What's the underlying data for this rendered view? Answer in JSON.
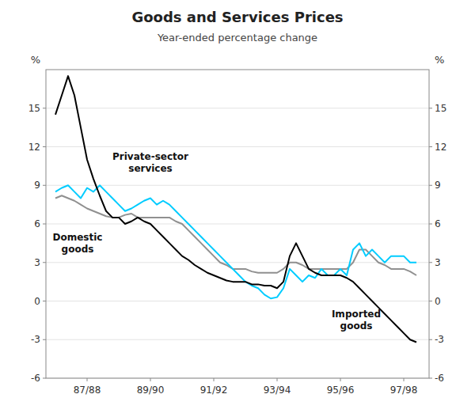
{
  "chart_data": {
    "type": "line",
    "title": "Goods and Services Prices",
    "subtitle": "Year-ended percentage change",
    "ylabel": "%",
    "y2label": "%",
    "x": [
      0.0,
      0.2,
      0.4,
      0.6,
      0.8,
      1.0,
      1.2,
      1.4,
      1.6,
      1.8,
      2.0,
      2.2,
      2.4,
      2.6,
      2.8,
      3.0,
      3.2,
      3.4,
      3.6,
      3.8,
      4.0,
      4.2,
      4.4,
      4.6,
      4.8,
      5.0,
      5.2,
      5.4,
      5.6,
      5.8,
      6.0,
      6.2,
      6.4,
      6.6,
      6.8,
      7.0,
      7.2,
      7.4,
      7.6,
      7.8,
      8.0,
      8.2,
      8.4,
      8.6,
      8.8,
      9.0,
      9.2,
      9.4,
      9.6,
      9.8,
      10.0,
      10.2,
      10.4,
      10.6,
      10.8,
      11.0,
      11.2,
      11.4
    ],
    "xlim": [
      -0.3,
      11.8
    ],
    "xticks": [
      {
        "value": 1,
        "label": "87/88"
      },
      {
        "value": 3,
        "label": "89/90"
      },
      {
        "value": 5,
        "label": "91/92"
      },
      {
        "value": 7,
        "label": "93/94"
      },
      {
        "value": 9,
        "label": "95/96"
      },
      {
        "value": 11,
        "label": "97/98"
      }
    ],
    "ylim": [
      -6,
      18
    ],
    "yticks": [
      -6,
      -3,
      0,
      3,
      6,
      9,
      12,
      15
    ],
    "y2lim": [
      -6,
      18
    ],
    "y2ticks": [
      -6,
      -3,
      0,
      3,
      6,
      9,
      12,
      15
    ],
    "grid": true,
    "series": [
      {
        "color": "#909090",
        "values": [
          8.0,
          8.2,
          8.0,
          7.8,
          7.5,
          7.2,
          7.0,
          6.8,
          6.6,
          6.5,
          6.5,
          6.7,
          6.8,
          6.5,
          6.5,
          6.5,
          6.5,
          6.5,
          6.5,
          6.2,
          6.0,
          5.5,
          5.0,
          4.5,
          4.0,
          3.5,
          3.0,
          2.8,
          2.5,
          2.5,
          2.5,
          2.3,
          2.2,
          2.2,
          2.2,
          2.2,
          2.5,
          3.0,
          3.0,
          2.8,
          2.5,
          2.5,
          2.5,
          2.5,
          2.5,
          2.5,
          2.5,
          3.0,
          4.0,
          4.0,
          3.5,
          3.0,
          2.8,
          2.5,
          2.5,
          2.5,
          2.3,
          2.0
        ]
      },
      {
        "color": "#00ccff",
        "values": [
          8.5,
          8.8,
          9.0,
          8.5,
          8.0,
          8.8,
          8.5,
          9.0,
          8.5,
          8.0,
          7.5,
          7.0,
          7.2,
          7.5,
          7.8,
          8.0,
          7.5,
          7.8,
          7.5,
          7.0,
          6.5,
          6.0,
          5.5,
          5.0,
          4.5,
          4.0,
          3.5,
          3.0,
          2.5,
          2.0,
          1.5,
          1.2,
          1.0,
          0.5,
          0.2,
          0.3,
          1.0,
          2.5,
          2.0,
          1.5,
          2.0,
          1.8,
          2.5,
          2.0,
          2.0,
          2.5,
          2.0,
          4.0,
          4.5,
          3.5,
          4.0,
          3.5,
          3.0,
          3.5,
          3.5,
          3.5,
          3.0,
          3.0
        ]
      },
      {
        "color": "#000000",
        "values": [
          14.5,
          16.0,
          17.5,
          16.0,
          13.5,
          11.0,
          9.5,
          8.2,
          7.0,
          6.5,
          6.5,
          6.0,
          6.2,
          6.5,
          6.2,
          6.0,
          5.5,
          5.0,
          4.5,
          4.0,
          3.5,
          3.2,
          2.8,
          2.5,
          2.2,
          2.0,
          1.8,
          1.6,
          1.5,
          1.5,
          1.5,
          1.3,
          1.3,
          1.2,
          1.2,
          1.0,
          1.5,
          3.5,
          4.5,
          3.5,
          2.5,
          2.2,
          2.0,
          2.0,
          2.0,
          2.0,
          1.8,
          1.5,
          1.0,
          0.5,
          0.0,
          -0.5,
          -1.0,
          -1.5,
          -2.0,
          -2.5,
          -3.0,
          -3.2
        ]
      }
    ],
    "annotations": [
      {
        "text": "Domestic\ngoods",
        "x": 0.7,
        "y": 4.5
      },
      {
        "text": "Private-sector\nservices",
        "x": 3.0,
        "y": 10.8
      },
      {
        "text": "Imported\ngoods",
        "x": 9.5,
        "y": -1.5
      }
    ]
  }
}
